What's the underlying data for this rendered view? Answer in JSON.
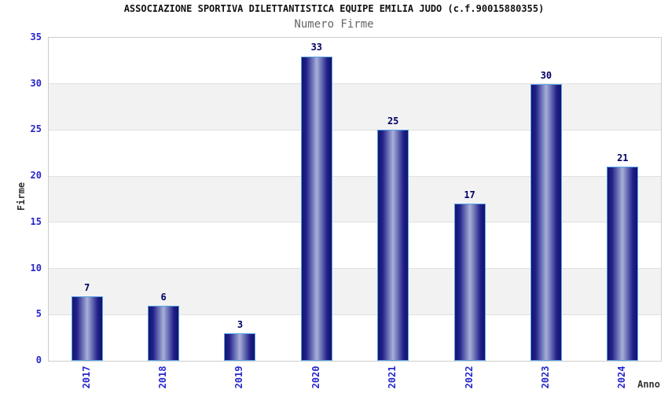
{
  "chart_data": {
    "type": "bar",
    "title": "ASSOCIAZIONE SPORTIVA DILETTANTISTICA EQUIPE EMILIA JUDO (c.f.90015880355)",
    "subtitle": "Numero Firme",
    "xlabel": "Anno",
    "ylabel": "Firme",
    "categories": [
      "2017",
      "2018",
      "2019",
      "2020",
      "2021",
      "2022",
      "2023",
      "2024"
    ],
    "values": [
      7,
      6,
      3,
      33,
      25,
      17,
      30,
      21
    ],
    "ylim": [
      0,
      35
    ],
    "yticks": [
      0,
      5,
      10,
      15,
      20,
      25,
      30,
      35
    ],
    "grid": "horizontal-bands-alternating",
    "legend": "none",
    "colors": {
      "bar_border": "#58a2e8",
      "bar_edge_dark": "#16166e",
      "bar_center_light": "#a8b0d8",
      "tick_label": "#2626cc",
      "value_label": "#000066",
      "band_gray": "#f2f2f2",
      "band_white": "#ffffff",
      "gridline": "#e0e0e0",
      "plot_border": "#cccccc",
      "title_color": "#111111",
      "subtitle_color": "#666666",
      "axis_title_color": "#333333"
    }
  }
}
